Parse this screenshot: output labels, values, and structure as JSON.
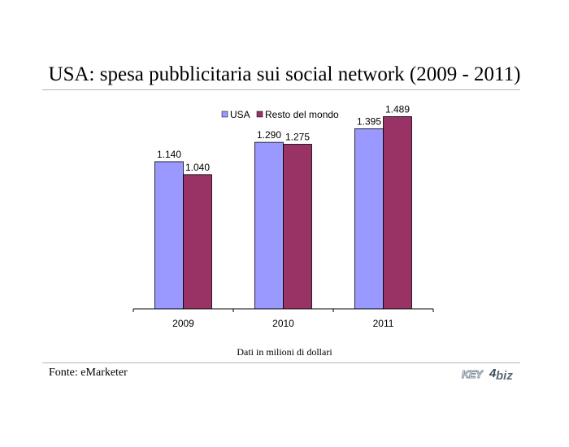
{
  "title": "USA: spesa pubblicitaria sui social network (2009 - 2011)",
  "note": "Dati in milioni di dollari",
  "source": "Fonte: eMarketer",
  "logo": {
    "part1": "KEY",
    "part2": "4",
    "part3": "biz"
  },
  "colors": {
    "usa": "#9999ff",
    "rest": "#993366",
    "axis": "#000000",
    "rule": "#b5b5b5"
  },
  "chart_data": {
    "type": "bar",
    "categories": [
      "2009",
      "2010",
      "2011"
    ],
    "series": [
      {
        "name": "USA",
        "values": [
          1140,
          1290,
          1395
        ],
        "labels": [
          "1.140",
          "1.290",
          "1.395"
        ]
      },
      {
        "name": "Resto del mondo",
        "values": [
          1040,
          1275,
          1489
        ],
        "labels": [
          "1.040",
          "1.275",
          "1.489"
        ]
      }
    ],
    "ylim": [
      0,
      1700
    ],
    "grid": false,
    "legend": "top-center",
    "xlabel": "",
    "ylabel": ""
  }
}
